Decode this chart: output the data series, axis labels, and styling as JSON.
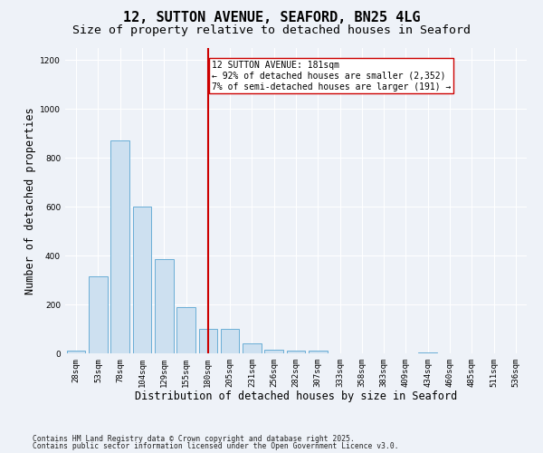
{
  "title1": "12, SUTTON AVENUE, SEAFORD, BN25 4LG",
  "title2": "Size of property relative to detached houses in Seaford",
  "xlabel": "Distribution of detached houses by size in Seaford",
  "ylabel": "Number of detached properties",
  "categories": [
    "28sqm",
    "53sqm",
    "78sqm",
    "104sqm",
    "129sqm",
    "155sqm",
    "180sqm",
    "205sqm",
    "231sqm",
    "256sqm",
    "282sqm",
    "307sqm",
    "333sqm",
    "358sqm",
    "383sqm",
    "409sqm",
    "434sqm",
    "460sqm",
    "485sqm",
    "511sqm",
    "536sqm"
  ],
  "values": [
    10,
    315,
    870,
    600,
    385,
    190,
    100,
    100,
    40,
    15,
    10,
    10,
    0,
    0,
    0,
    0,
    5,
    0,
    0,
    0,
    0
  ],
  "bar_color": "#cde0f0",
  "bar_edge_color": "#6aaed6",
  "vline_x_index": 6,
  "vline_color": "#cc0000",
  "annotation_text": "12 SUTTON AVENUE: 181sqm\n← 92% of detached houses are smaller (2,352)\n7% of semi-detached houses are larger (191) →",
  "annotation_box_color": "#ffffff",
  "annotation_box_edge": "#cc0000",
  "ylim": [
    0,
    1250
  ],
  "yticks": [
    0,
    200,
    400,
    600,
    800,
    1000,
    1200
  ],
  "background_color": "#eef2f8",
  "grid_color": "#ffffff",
  "footer1": "Contains HM Land Registry data © Crown copyright and database right 2025.",
  "footer2": "Contains public sector information licensed under the Open Government Licence v3.0.",
  "title_fontsize": 11,
  "subtitle_fontsize": 9.5,
  "tick_fontsize": 6.5,
  "label_fontsize": 8.5,
  "annotation_fontsize": 7,
  "footer_fontsize": 5.8
}
